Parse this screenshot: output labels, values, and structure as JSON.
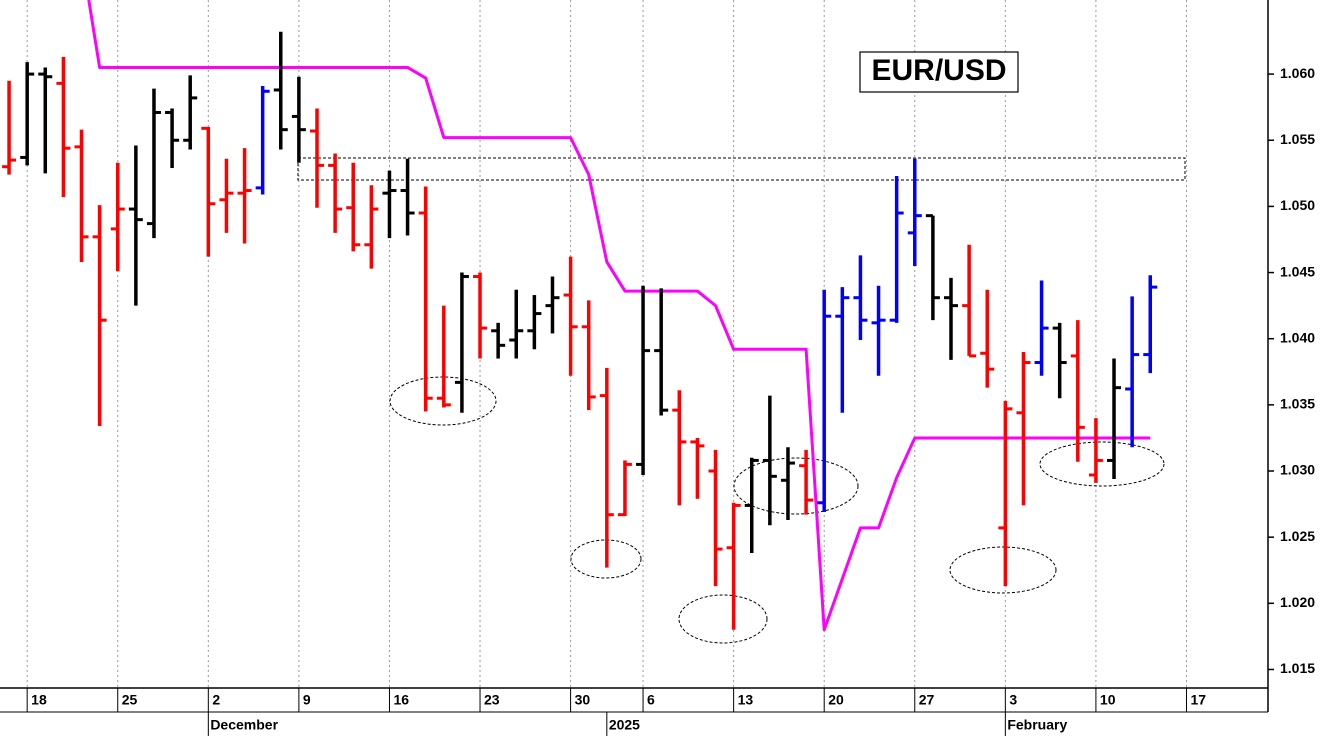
{
  "chart_data": {
    "type": "ohlc",
    "title": "EUR/USD",
    "xlim": [
      -1.5,
      68.5
    ],
    "ylim": [
      1.0136,
      1.0656
    ],
    "yticks": [
      1.015,
      {
        "value": 1.02,
        "label": "1.020"
      },
      1.025,
      {
        "value": 1.03,
        "label": "1.030"
      },
      1.035,
      {
        "value": 1.04,
        "label": "1.040"
      },
      1.045,
      {
        "value": 1.05,
        "label": "1.050"
      },
      1.055,
      {
        "value": 1.06,
        "label": "1.060"
      }
    ],
    "xticks": [
      {
        "value": 0,
        "label": "18"
      },
      {
        "value": 5,
        "label": "25"
      },
      {
        "value": 10,
        "label": "2"
      },
      {
        "value": 15,
        "label": "9"
      },
      {
        "value": 20,
        "label": "16"
      },
      {
        "value": 25,
        "label": "23"
      },
      {
        "value": 30,
        "label": "30"
      },
      {
        "value": 34,
        "label": "6"
      },
      {
        "value": 39,
        "label": "13"
      },
      {
        "value": 44,
        "label": "20"
      },
      {
        "value": 49,
        "label": "27"
      },
      {
        "value": 54,
        "label": "3"
      },
      {
        "value": 59,
        "label": "10"
      },
      {
        "value": 64,
        "label": "17"
      }
    ],
    "month_labels": [
      {
        "value": 10,
        "label": "December"
      },
      {
        "value": 32,
        "label": "2025"
      },
      {
        "value": 54,
        "label": "February"
      }
    ],
    "grid": true,
    "bars": {
      "x": [
        -1,
        0,
        1,
        2,
        3,
        4,
        5,
        6,
        7,
        8,
        9,
        10,
        11,
        12,
        13,
        14,
        15,
        16,
        17,
        18,
        19,
        20,
        21,
        22,
        23,
        24,
        25,
        26,
        27,
        28,
        29,
        30,
        31,
        32,
        33,
        34,
        35,
        36,
        37,
        38,
        39,
        40,
        41,
        42,
        43,
        44,
        45,
        46,
        47,
        48,
        49,
        50,
        51,
        52,
        53,
        54,
        55,
        56,
        57,
        58,
        59,
        60,
        61,
        62
      ],
      "open": [
        1.053,
        1.0537,
        1.06,
        1.0593,
        1.0545,
        1.0477,
        1.0483,
        1.0498,
        1.0487,
        1.0571,
        1.055,
        1.0559,
        1.0505,
        1.051,
        1.0514,
        1.0588,
        1.0568,
        1.0557,
        1.0531,
        1.0499,
        1.0471,
        1.051,
        1.0512,
        1.0495,
        1.0355,
        1.0367,
        1.0447,
        1.0406,
        1.0399,
        1.0406,
        1.0425,
        1.0433,
        1.0409,
        1.0357,
        1.0267,
        1.0305,
        1.0391,
        1.0346,
        1.0322,
        1.03,
        1.0242,
        1.0274,
        1.0308,
        1.0293,
        1.0304,
        1.0276,
        1.0417,
        1.0431,
        1.0412,
        1.0414,
        1.048,
        1.0493,
        1.0431,
        1.0425,
        1.0389,
        1.0257,
        1.0344,
        1.0382,
        1.0408,
        1.0387,
        1.0297,
        1.0308,
        1.0362,
        1.0388
      ],
      "high": [
        1.0595,
        1.0609,
        1.0605,
        1.0613,
        1.0558,
        1.0501,
        1.0533,
        1.0546,
        1.0589,
        1.0574,
        1.0599,
        1.056,
        1.0536,
        1.0544,
        1.0591,
        1.0632,
        1.0598,
        1.0574,
        1.054,
        1.0533,
        1.0516,
        1.0527,
        1.0536,
        1.0515,
        1.0425,
        1.045,
        1.045,
        1.0412,
        1.0437,
        1.0433,
        1.0447,
        1.0462,
        1.0429,
        1.0378,
        1.0308,
        1.044,
        1.0438,
        1.0361,
        1.0325,
        1.0316,
        1.0276,
        1.031,
        1.0357,
        1.0318,
        1.0316,
        1.0437,
        1.0439,
        1.0463,
        1.044,
        1.0523,
        1.0536,
        1.0493,
        1.0446,
        1.0471,
        1.0437,
        1.0353,
        1.039,
        1.0444,
        1.0412,
        1.0414,
        1.034,
        1.0385,
        1.0432,
        1.0448
      ],
      "low": [
        1.0524,
        1.0531,
        1.0525,
        1.0507,
        1.0458,
        1.0334,
        1.0451,
        1.0425,
        1.0476,
        1.0529,
        1.0543,
        1.0462,
        1.048,
        1.0472,
        1.0509,
        1.0543,
        1.0533,
        1.0499,
        1.048,
        1.0466,
        1.0453,
        1.0476,
        1.0478,
        1.0345,
        1.0348,
        1.0344,
        1.0385,
        1.0385,
        1.0385,
        1.0392,
        1.0404,
        1.0372,
        1.0346,
        1.0227,
        1.0266,
        1.0297,
        1.0342,
        1.0274,
        1.0279,
        1.0213,
        1.018,
        1.0238,
        1.0259,
        1.0263,
        1.0267,
        1.0269,
        1.0344,
        1.0399,
        1.0372,
        1.0412,
        1.0455,
        1.0414,
        1.0384,
        1.0387,
        1.0363,
        1.0213,
        1.0274,
        1.0372,
        1.0355,
        1.0307,
        1.0291,
        1.0294,
        1.0318,
        1.0374
      ],
      "close": [
        1.0535,
        1.06,
        1.0598,
        1.0544,
        1.0477,
        1.0414,
        1.0498,
        1.049,
        1.0571,
        1.055,
        1.0582,
        1.0502,
        1.051,
        1.0512,
        1.0587,
        1.0558,
        1.0558,
        1.0531,
        1.0498,
        1.0471,
        1.0498,
        1.0512,
        1.0495,
        1.0355,
        1.035,
        1.0447,
        1.0408,
        1.0395,
        1.0406,
        1.0419,
        1.0431,
        1.0409,
        1.0356,
        1.0267,
        1.0305,
        1.0391,
        1.0346,
        1.0322,
        1.0319,
        1.0241,
        1.0274,
        1.0308,
        1.0296,
        1.0306,
        1.0278,
        1.0417,
        1.0431,
        1.0414,
        1.0414,
        1.0495,
        1.0493,
        1.0431,
        1.0425,
        1.0387,
        1.0377,
        1.0347,
        1.0382,
        1.0408,
        1.0382,
        1.0333,
        1.0308,
        1.0363,
        1.0388,
        1.0439
      ],
      "colors": [
        "#ff0000",
        "#000000",
        "#000000",
        "#ff0000",
        "#ff0000",
        "#ff0000",
        "#ff0000",
        "#000000",
        "#000000",
        "#000000",
        "#000000",
        "#ff0000",
        "#ff0000",
        "#ff0000",
        "#0000ff",
        "#000000",
        "#000000",
        "#ff0000",
        "#ff0000",
        "#ff0000",
        "#ff0000",
        "#000000",
        "#000000",
        "#ff0000",
        "#ff0000",
        "#000000",
        "#ff0000",
        "#000000",
        "#000000",
        "#000000",
        "#000000",
        "#ff0000",
        "#ff0000",
        "#ff0000",
        "#ff0000",
        "#000000",
        "#000000",
        "#ff0000",
        "#ff0000",
        "#ff0000",
        "#ff0000",
        "#000000",
        "#000000",
        "#000000",
        "#ff0000",
        "#0000ff",
        "#0000ff",
        "#0000ff",
        "#0000ff",
        "#0000ff",
        "#0000ff",
        "#000000",
        "#000000",
        "#ff0000",
        "#ff0000",
        "#ff0000",
        "#ff0000",
        "#0000ff",
        "#000000",
        "#ff0000",
        "#ff0000",
        "#000000",
        "#0000ff",
        "#0000ff"
      ]
    },
    "stop_line": {
      "color": "#ff00ff",
      "x": [
        3.4,
        4,
        21,
        22,
        23,
        30,
        31,
        32,
        33,
        37,
        38,
        39,
        43,
        44,
        46,
        47,
        48,
        49,
        62
      ],
      "values": [
        1.0656,
        1.0605,
        1.0605,
        1.0597,
        1.0552,
        1.0552,
        1.0524,
        1.0458,
        1.0436,
        1.0436,
        1.0425,
        1.0392,
        1.0392,
        1.018,
        1.0257,
        1.0257,
        1.0295,
        1.0325,
        1.0325
      ]
    }
  }
}
